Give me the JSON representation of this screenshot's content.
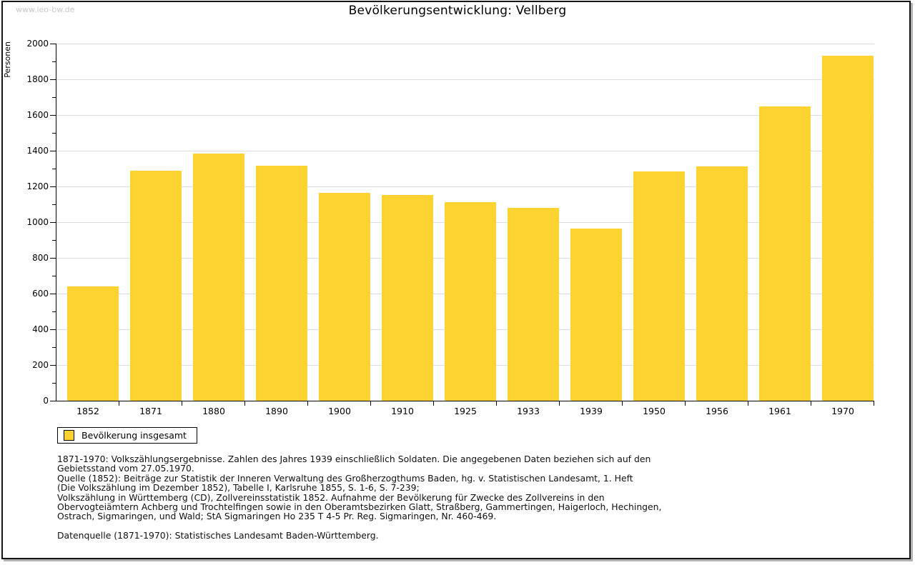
{
  "page": {
    "watermark": "www.leo-bw.de"
  },
  "chart_data": {
    "type": "bar",
    "title": "Bevölkerungsentwicklung: Vellberg",
    "xlabel": "",
    "ylabel": "Personen",
    "ylim": [
      0,
      2000
    ],
    "y_major_step": 200,
    "y_minor_step": 100,
    "grid": "horizontal-major",
    "bar_color": "#fcd330",
    "categories": [
      "1852",
      "1871",
      "1880",
      "1890",
      "1900",
      "1910",
      "1925",
      "1933",
      "1939",
      "1950",
      "1956",
      "1961",
      "1970"
    ],
    "values": [
      640,
      1290,
      1383,
      1316,
      1164,
      1152,
      1112,
      1080,
      964,
      1284,
      1312,
      1648,
      1932
    ],
    "legend": [
      {
        "label": "Bevölkerung insgesamt",
        "color": "#fcd330"
      }
    ],
    "legend_position": "bottom-left"
  },
  "footer": {
    "lines": [
      "1871-1970: Volkszählungsergebnisse. Zahlen des Jahres 1939 einschließlich Soldaten. Die angegebenen Daten beziehen sich auf den",
      "Gebietsstand vom 27.05.1970.",
      "Quelle (1852): Beiträge zur Statistik der Inneren Verwaltung des Großherzogthums Baden, hg. v. Statistischen Landesamt, 1. Heft",
      "(Die Volkszählung im Dezember 1852), Tabelle I, Karlsruhe 1855, S. 1-6, S. 7-239;",
      "Volkszählung in Württemberg (CD), Zollvereinsstatistik 1852. Aufnahme der Bevölkerung für Zwecke des Zollvereins in den",
      "Obervogteiämtern Achberg und Trochtelfingen sowie in den Oberamtsbezirken Glatt, Straßberg, Gammertingen, Haigerloch, Hechingen,",
      "Ostrach, Sigmaringen, und Wald; StA Sigmaringen Ho 235 T 4-5 Pr. Reg. Sigmaringen, Nr. 460-469."
    ],
    "datasource": "Datenquelle (1871-1970): Statistisches Landesamt Baden-Württemberg."
  }
}
